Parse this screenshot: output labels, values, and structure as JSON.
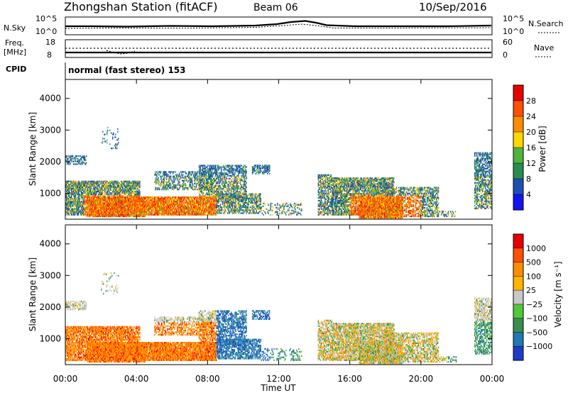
{
  "header": {
    "station_title": "Zhongshan Station (fitACF)",
    "beam": "Beam 06",
    "date": "10/Sep/2016"
  },
  "top_panels": {
    "nsky_label": "N.Sky",
    "nsearch_label": "N.Search",
    "nsky_ticks": [
      "10^5",
      "10^0"
    ],
    "nsearch_ticks": [
      "10^5",
      "10^0"
    ],
    "freq_label_1": "Freq.",
    "freq_label_2": "[MHz]",
    "freq_ticks": [
      "18",
      "8"
    ],
    "nave_label": "Nave",
    "nave_ticks": [
      "60",
      "0"
    ],
    "cpid_label": "CPID",
    "cpid_text": "normal (fast stereo) 153"
  },
  "chart_data": [
    {
      "type": "heatmap",
      "title": "",
      "xlabel": "Time UT",
      "ylabel": "Slant Range [km]",
      "xlim": [
        "00:00",
        "24:00"
      ],
      "ylim": [
        180,
        4600
      ],
      "x_tick_labels": [
        "00:00",
        "04:00",
        "08:00",
        "12:00",
        "16:00",
        "20:00",
        "00:00"
      ],
      "y_tick_labels": [
        "1000",
        "2000",
        "3000",
        "4000"
      ],
      "colorbar": {
        "label": "Power [dB]",
        "tick_labels": [
          "4",
          "8",
          "12",
          "16",
          "20",
          "24",
          "28"
        ],
        "range": [
          0,
          32
        ],
        "colors": [
          "#1414f0",
          "#1e50b4",
          "#288c50",
          "#50b43c",
          "#ffd700",
          "#ff8c00",
          "#ff5000",
          "#e60000"
        ]
      }
    },
    {
      "type": "heatmap",
      "title": "",
      "xlabel": "Time UT",
      "ylabel": "Slant Range [km]",
      "xlim": [
        "00:00",
        "24:00"
      ],
      "ylim": [
        180,
        4600
      ],
      "x_tick_labels": [
        "00:00",
        "04:00",
        "08:00",
        "12:00",
        "16:00",
        "20:00",
        "00:00"
      ],
      "y_tick_labels": [
        "1000",
        "2000",
        "3000",
        "4000"
      ],
      "colorbar": {
        "label": "Velocity [m s⁻¹]",
        "tick_labels": [
          "1000",
          "500",
          "100",
          "25",
          "−25",
          "−100",
          "−500",
          "−1000"
        ],
        "colors": [
          "#1e3cc8",
          "#1e78b4",
          "#3c8c50",
          "#50c83c",
          "#c8c8c8",
          "#ffb400",
          "#ff8c00",
          "#ff5000",
          "#e60000"
        ]
      }
    }
  ],
  "x_axis_title": "Time UT"
}
